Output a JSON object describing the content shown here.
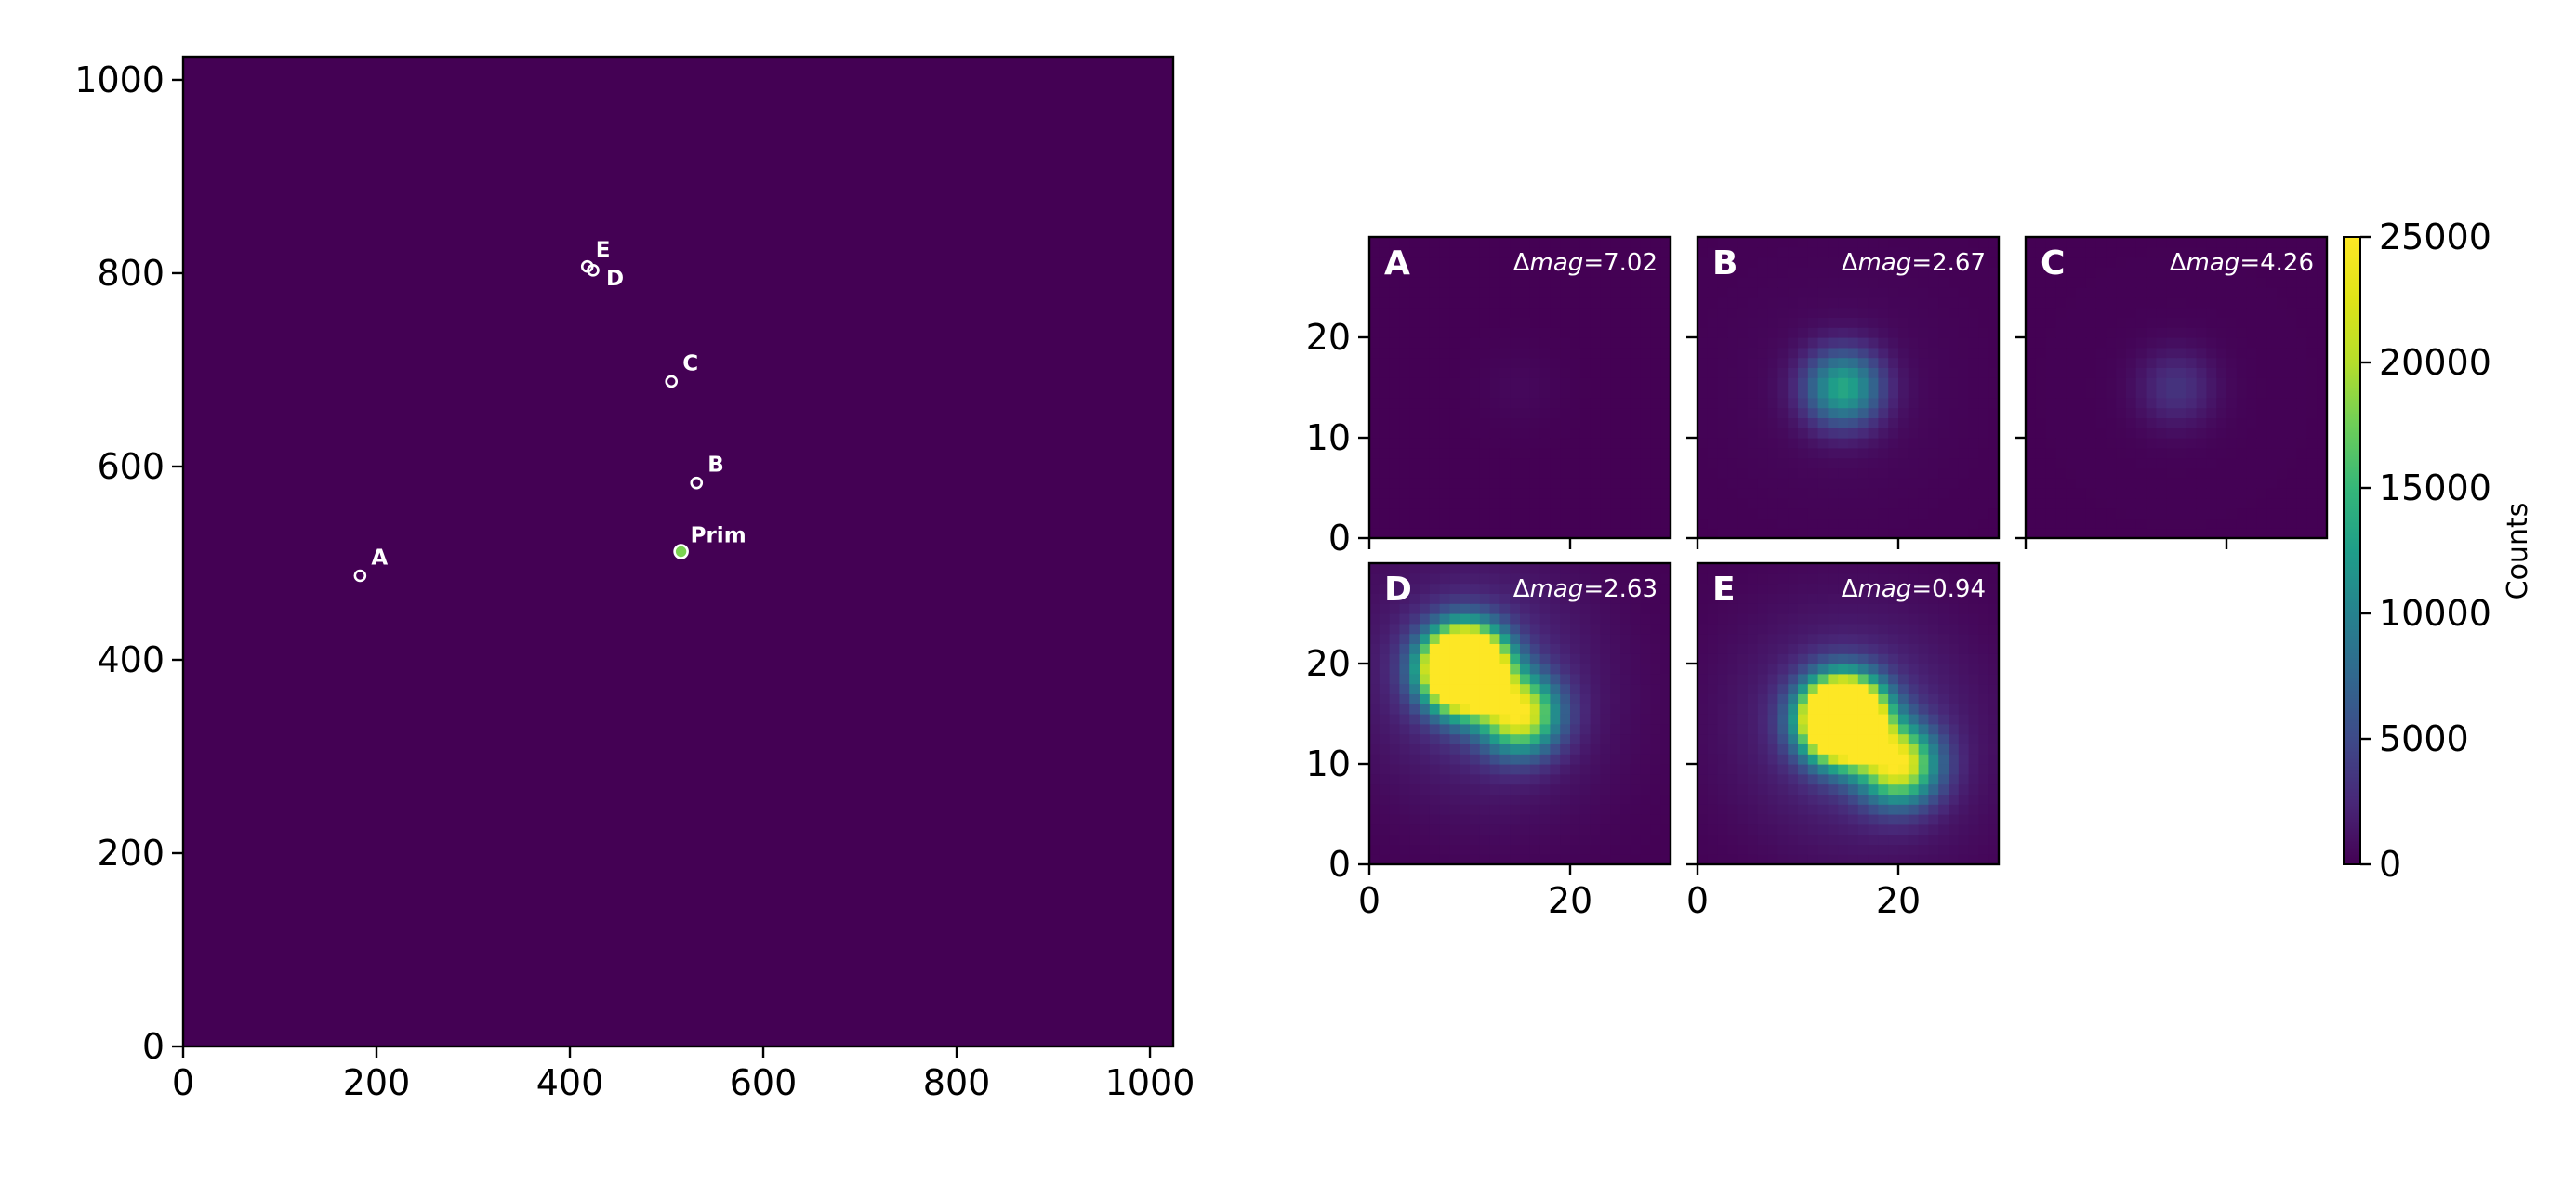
{
  "chart_data": [
    {
      "type": "heatmap",
      "title": "",
      "xlabel": "",
      "ylabel": "",
      "xlim": [
        0,
        1024
      ],
      "ylim": [
        0,
        1024
      ],
      "xticks": [
        0,
        200,
        400,
        600,
        800,
        1000
      ],
      "yticks": [
        0,
        200,
        400,
        600,
        800,
        1000
      ],
      "colormap": "viridis",
      "background_color": "#440154",
      "sources": [
        {
          "label": "Prim",
          "x": 515,
          "y": 512
        },
        {
          "label": "A",
          "x": 183,
          "y": 487
        },
        {
          "label": "B",
          "x": 531,
          "y": 583
        },
        {
          "label": "C",
          "x": 505,
          "y": 688
        },
        {
          "label": "D",
          "x": 424,
          "y": 803
        },
        {
          "label": "E",
          "x": 418,
          "y": 807
        }
      ]
    },
    {
      "type": "heatmap",
      "colormap": "viridis",
      "xlim": [
        0,
        30
      ],
      "ylim": [
        0,
        30
      ],
      "xticks": [
        0,
        20
      ],
      "yticks": [
        0,
        10,
        20
      ],
      "panels": [
        {
          "label": "A",
          "dmag_value": "7.02",
          "stars": [
            {
              "x": 15,
              "y": 15,
              "peak": 450
            }
          ]
        },
        {
          "label": "B",
          "dmag_value": "2.67",
          "stars": [
            {
              "x": 14.5,
              "y": 15,
              "peak": 13000
            }
          ]
        },
        {
          "label": "C",
          "dmag_value": "4.26",
          "stars": [
            {
              "x": 15,
              "y": 15,
              "peak": 3200
            }
          ]
        },
        {
          "label": "D",
          "dmag_value": "2.63",
          "stars": [
            {
              "x": 9.5,
              "y": 19.5,
              "peak": 60000
            },
            {
              "x": 15,
              "y": 15,
              "peak": 22000
            }
          ]
        },
        {
          "label": "E",
          "dmag_value": "0.94",
          "stars": [
            {
              "x": 14.5,
              "y": 14.5,
              "peak": 60000
            },
            {
              "x": 20,
              "y": 10,
              "peak": 22000
            }
          ]
        }
      ],
      "colorbar": {
        "label": "Counts",
        "min": 0,
        "max": 25000,
        "ticks": [
          0,
          5000,
          10000,
          15000,
          20000,
          25000
        ]
      }
    }
  ]
}
